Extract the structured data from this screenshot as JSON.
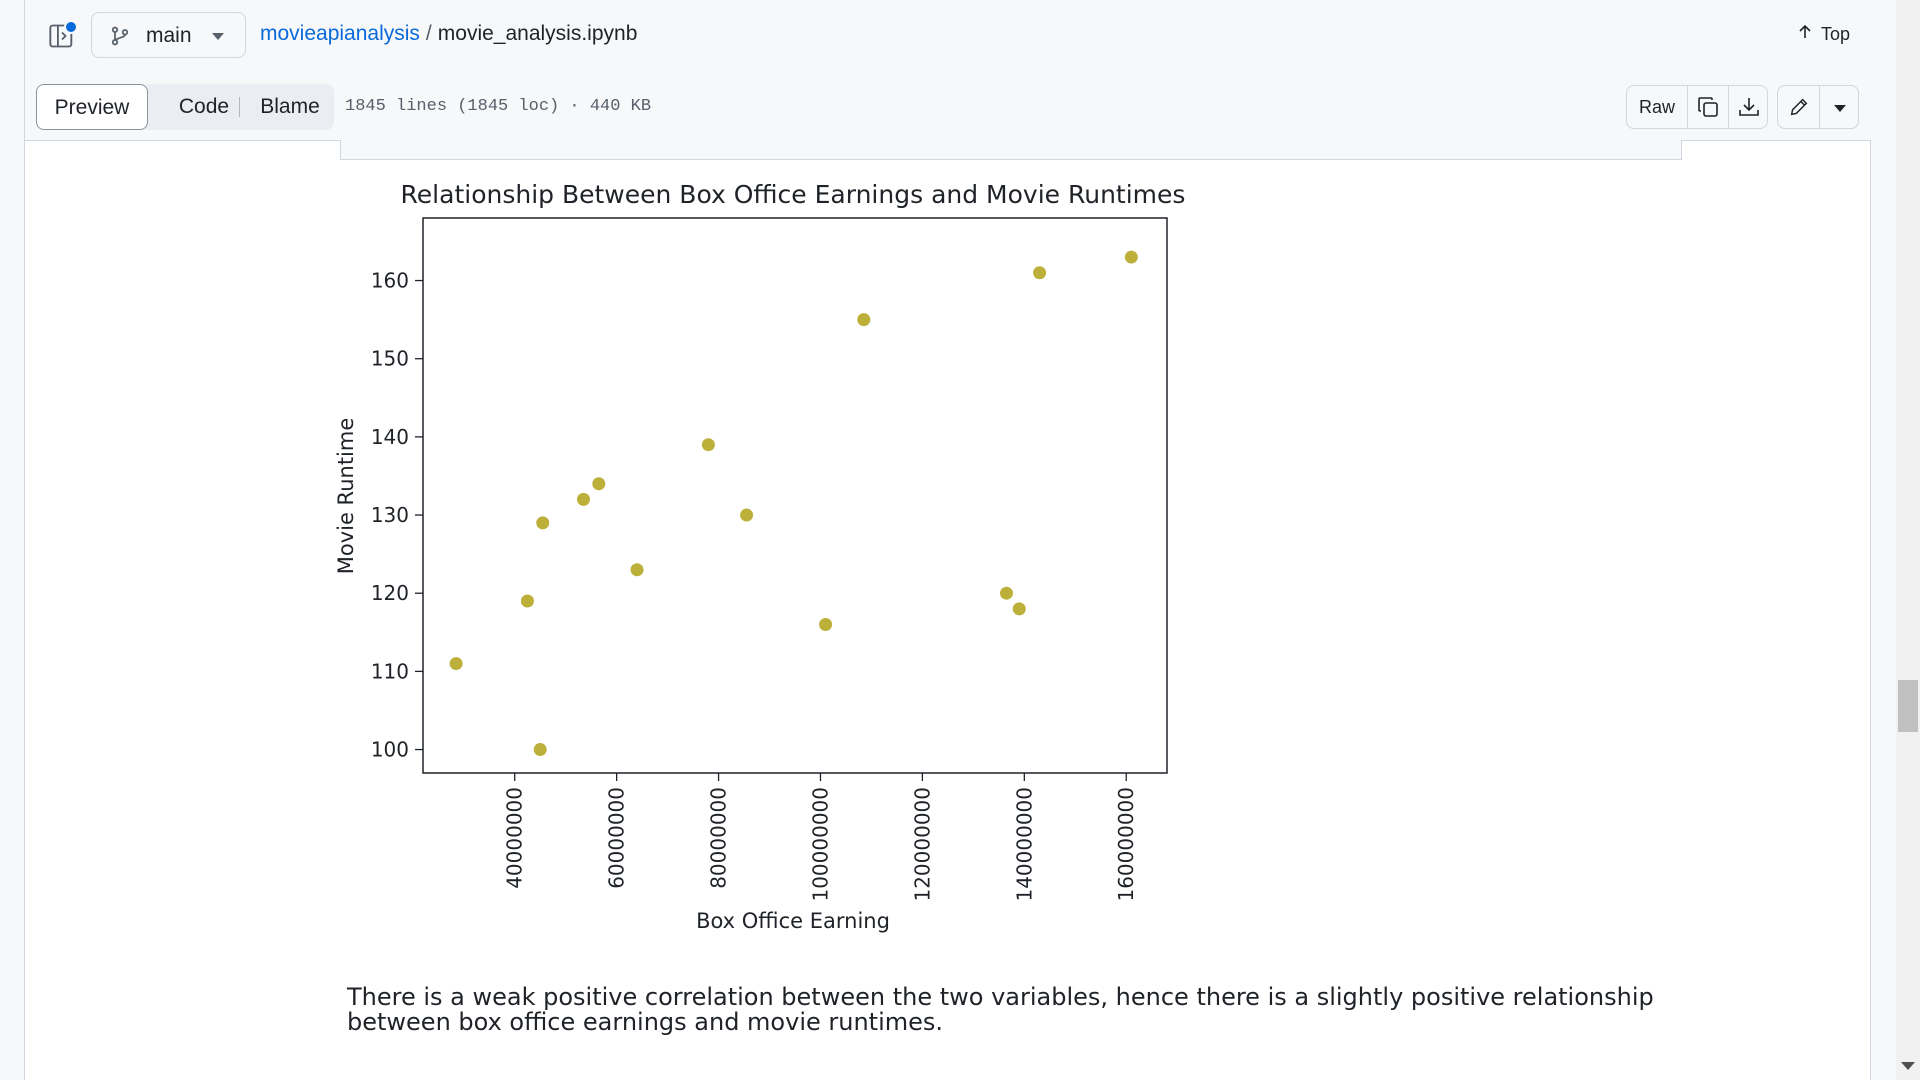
{
  "header": {
    "branch": "main",
    "repo": "movieapianalysis",
    "separator": "/",
    "filename": "movie_analysis.ipynb",
    "top_label": "Top"
  },
  "file_bar": {
    "tabs": [
      "Preview",
      "Code",
      "Blame"
    ],
    "active_tab": "Preview",
    "meta": "1845 lines (1845 loc) · 440 KB",
    "raw_label": "Raw"
  },
  "icons": [
    "sidebar-toggle-icon",
    "branch-icon",
    "chevron-down-icon",
    "arrow-up-icon",
    "copy-icon",
    "download-icon",
    "pencil-icon"
  ],
  "colors": {
    "accent": "#0969da",
    "marker": "#bcb03a",
    "notification_dot": "#0969da"
  },
  "chart_data": {
    "type": "scatter",
    "title": "Relationship Between Box Office Earnings and Movie Runtimes",
    "xlabel": "Box Office Earning",
    "ylabel": "Movie Runtime",
    "xlim": [
      22000000,
      168000000
    ],
    "ylim": [
      97,
      168
    ],
    "xticks": [
      40000000,
      60000000,
      80000000,
      100000000,
      120000000,
      140000000,
      160000000
    ],
    "xtick_labels": [
      "40000000",
      "60000000",
      "80000000",
      "100000000",
      "120000000",
      "140000000",
      "160000000"
    ],
    "yticks": [
      100,
      110,
      120,
      130,
      140,
      150,
      160
    ],
    "ytick_labels": [
      "100",
      "110",
      "120",
      "130",
      "140",
      "150",
      "160"
    ],
    "grid": false,
    "x_label_rotation": "vertical",
    "points": [
      {
        "x": 28500000,
        "y": 111
      },
      {
        "x": 42500000,
        "y": 119
      },
      {
        "x": 45000000,
        "y": 100
      },
      {
        "x": 45500000,
        "y": 129
      },
      {
        "x": 53500000,
        "y": 132
      },
      {
        "x": 56500000,
        "y": 134
      },
      {
        "x": 64000000,
        "y": 123
      },
      {
        "x": 78000000,
        "y": 139
      },
      {
        "x": 85500000,
        "y": 130
      },
      {
        "x": 101000000,
        "y": 116
      },
      {
        "x": 108500000,
        "y": 155
      },
      {
        "x": 136500000,
        "y": 120
      },
      {
        "x": 139000000,
        "y": 118
      },
      {
        "x": 143000000,
        "y": 161
      },
      {
        "x": 161000000,
        "y": 163
      }
    ]
  },
  "markdown": {
    "text": "There is a weak positive correlation between the two variables, hence there is a slightly positive relationship between box office earnings and movie runtimes."
  }
}
